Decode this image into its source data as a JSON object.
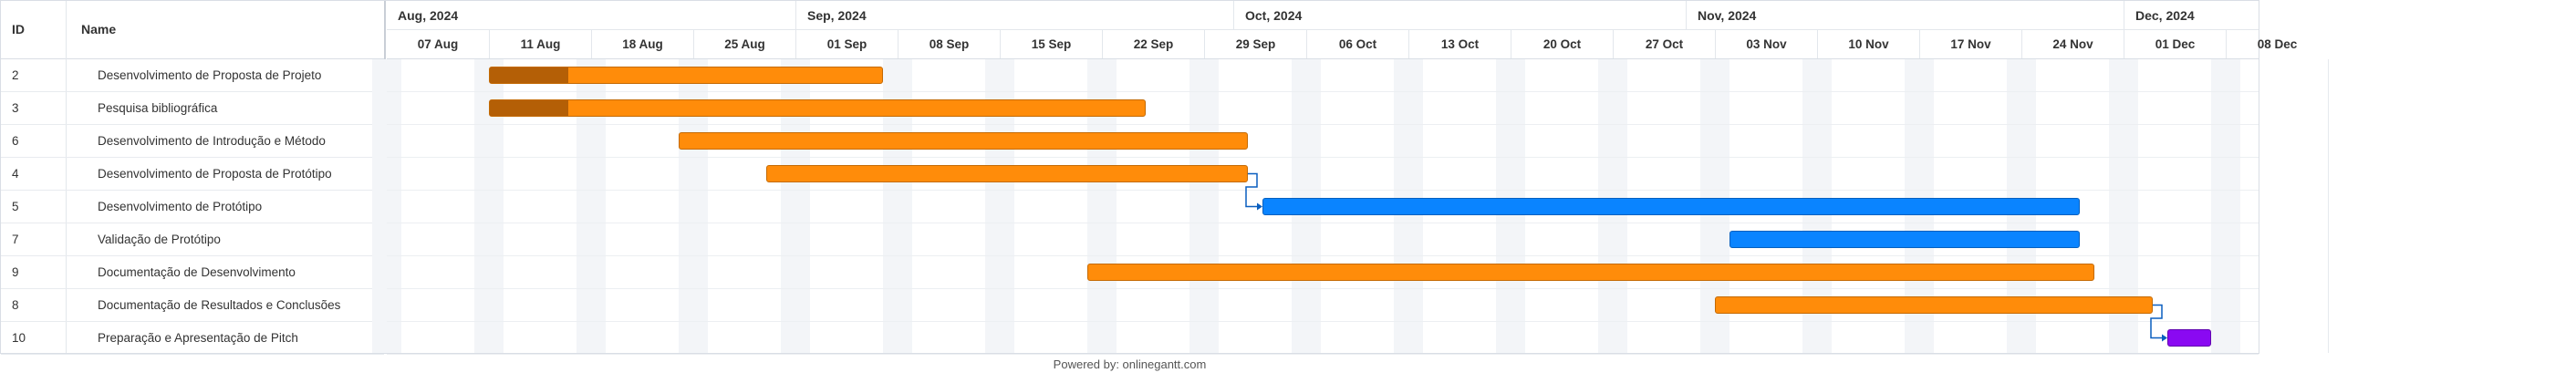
{
  "grid": {
    "id_header": "ID",
    "name_header": "Name",
    "rows": [
      {
        "id": "2",
        "name": "Desenvolvimento de Proposta de Projeto"
      },
      {
        "id": "3",
        "name": "Pesquisa bibliográfica"
      },
      {
        "id": "6",
        "name": "Desenvolvimento de Introdução e Método"
      },
      {
        "id": "4",
        "name": "Desenvolvimento de Proposta de Protótipo"
      },
      {
        "id": "5",
        "name": "Desenvolvimento de Protótipo"
      },
      {
        "id": "7",
        "name": "Validação de Protótipo"
      },
      {
        "id": "9",
        "name": "Documentação de Desenvolvimento"
      },
      {
        "id": "8",
        "name": "Documentação de Resultados e Conclusões"
      },
      {
        "id": "10",
        "name": "Preparação e Apresentação de Pitch"
      }
    ]
  },
  "timeline": {
    "months": [
      "Aug, 2024",
      "Sep, 2024",
      "Oct, 2024",
      "Nov, 2024",
      "Dec, 2024"
    ],
    "weeks": [
      "07 Aug",
      "11 Aug",
      "18 Aug",
      "25 Aug",
      "01 Sep",
      "08 Sep",
      "15 Sep",
      "22 Sep",
      "29 Sep",
      "06 Oct",
      "13 Oct",
      "20 Oct",
      "27 Oct",
      "03 Nov",
      "10 Nov",
      "17 Nov",
      "24 Nov",
      "01 Dec",
      "08 Dec"
    ]
  },
  "tasks": [
    {
      "id": "2",
      "start": "2024-08-11",
      "end": "2024-09-07",
      "color": "#ff8c0a",
      "progress": 0.2
    },
    {
      "id": "3",
      "start": "2024-08-11",
      "end": "2024-09-25",
      "color": "#ff8c0a",
      "progress": 0.12
    },
    {
      "id": "6",
      "start": "2024-08-24",
      "end": "2024-10-02",
      "color": "#ff8c0a",
      "progress": 0
    },
    {
      "id": "4",
      "start": "2024-08-30",
      "end": "2024-10-02",
      "color": "#ff8c0a",
      "progress": 0
    },
    {
      "id": "5",
      "start": "2024-10-03",
      "end": "2024-11-28",
      "color": "#0a84ff",
      "progress": 0
    },
    {
      "id": "7",
      "start": "2024-11-04",
      "end": "2024-11-28",
      "color": "#0a84ff",
      "progress": 0
    },
    {
      "id": "9",
      "start": "2024-09-21",
      "end": "2024-11-29",
      "color": "#ff8c0a",
      "progress": 0
    },
    {
      "id": "8",
      "start": "2024-11-03",
      "end": "2024-12-03",
      "color": "#ff8c0a",
      "progress": 0
    },
    {
      "id": "10",
      "start": "2024-12-04",
      "end": "2024-12-07",
      "color": "#8a09f2",
      "progress": 0
    }
  ],
  "dependencies": [
    {
      "from": "4",
      "to": "5"
    },
    {
      "from": "8",
      "to": "10"
    }
  ],
  "footer": {
    "text": "Powered by: onlinegantt.com"
  }
}
